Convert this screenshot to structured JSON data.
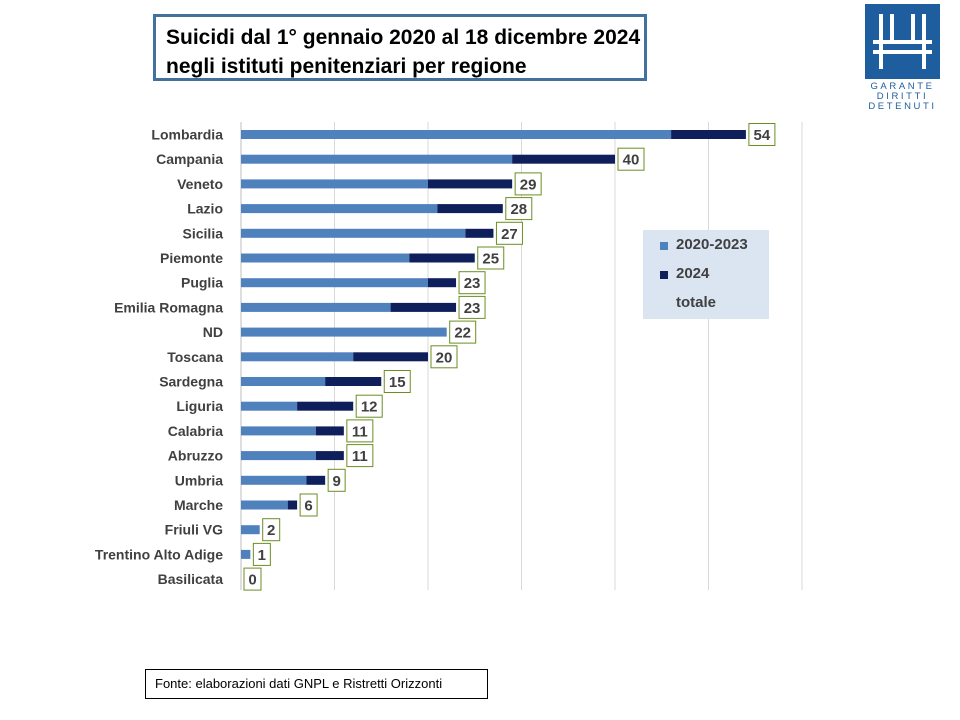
{
  "title": {
    "line1": "Suicidi dal 1° gennaio 2020 al 18 dicembre 2024",
    "line2": "negli istituti penitenziari per regione"
  },
  "logo": {
    "lines": [
      "GARANTE",
      "DIRITTI",
      "DETENUTI"
    ]
  },
  "source": "Fonte: elaborazioni dati GNPL e Ristretti Orizzonti",
  "legend": {
    "items": [
      "2020-2023",
      "2024",
      "totale"
    ]
  },
  "colors": {
    "series_2020_2023": "#4f81bd",
    "series_2024": "#0f1f5c",
    "label_border": "#6b8e23",
    "gridline": "#d9d9d9",
    "legend_bg": "#dbe5f2"
  },
  "chart_data": {
    "type": "bar",
    "orientation": "horizontal",
    "stacked": true,
    "categories": [
      "Lombardia",
      "Campania",
      "Veneto",
      "Lazio",
      "Sicilia",
      "Piemonte",
      "Puglia",
      "Emilia Romagna",
      "ND",
      "Toscana",
      "Sardegna",
      "Liguria",
      "Calabria",
      "Abruzzo",
      "Umbria",
      "Marche",
      "Friuli VG",
      "Trentino Alto Adige",
      "Basilicata"
    ],
    "series": [
      {
        "name": "2020-2023",
        "values": [
          46,
          29,
          20,
          21,
          24,
          18,
          20,
          16,
          22,
          12,
          9,
          6,
          8,
          8,
          7,
          5,
          2,
          1,
          0
        ]
      },
      {
        "name": "2024",
        "values": [
          8,
          11,
          9,
          7,
          3,
          7,
          3,
          7,
          0,
          8,
          6,
          6,
          3,
          3,
          2,
          1,
          0,
          0,
          0
        ]
      }
    ],
    "totals": [
      54,
      40,
      29,
      28,
      27,
      25,
      23,
      23,
      22,
      20,
      15,
      12,
      11,
      11,
      9,
      6,
      2,
      1,
      0
    ],
    "xlim": [
      0,
      60
    ],
    "grid": true,
    "legend_position": "right"
  }
}
